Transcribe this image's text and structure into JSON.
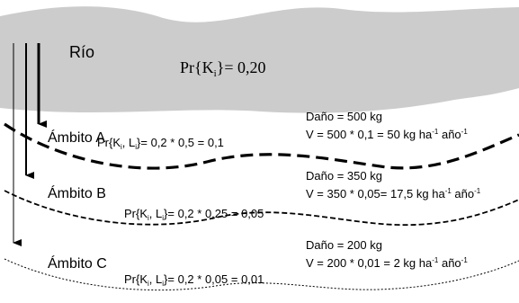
{
  "river": {
    "label": "Río",
    "prob": {
      "pre": "Pr{",
      "k": "K",
      "sub": "i",
      "post": "}= 0,20"
    }
  },
  "zones": [
    {
      "label": "Ámbito A",
      "prob": {
        "pre": "Pr{K",
        "sub1": "i",
        "mid": ", L",
        "sub2": "i",
        "post": "}=  0,2 * 0,5 = 0,1"
      },
      "damage": "Daño = 500 kg",
      "value": {
        "pre": "V = 500 * 0,1 = 50 kg ha",
        "sup1": "-1",
        "mid": " año",
        "sup2": "-1"
      }
    },
    {
      "label": "Ámbito B",
      "prob": {
        "pre": "Pr{K",
        "sub1": "i",
        "mid": ", L",
        "sub2": "i",
        "post": "}=  0,2 * 0,25 = 0,05"
      },
      "damage": "Daño = 350 kg",
      "value": {
        "pre": "V = 350 * 0,05= 17,5 kg ha",
        "sup1": "-1",
        "mid": " año",
        "sup2": "-1"
      }
    },
    {
      "label": "Ámbito C",
      "prob": {
        "pre": "Pr{K",
        "sub1": "i",
        "mid": ", L",
        "sub2": "i",
        "post": "}=  0,2 * 0,05 = 0,01"
      },
      "damage": "Daño = 200 kg",
      "value": {
        "pre": "V = 200 * 0,01 = 2 kg ha",
        "sup1": "-1",
        "mid": " año",
        "sup2": "-1"
      }
    }
  ],
  "colors": {
    "river": "#cccccc",
    "ink": "#000000"
  }
}
